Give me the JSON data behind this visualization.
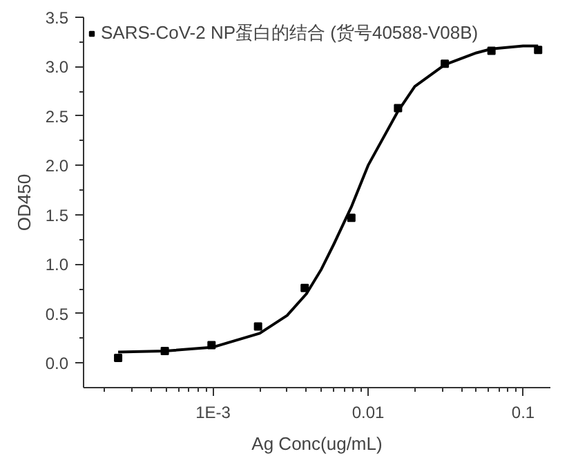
{
  "chart_data": {
    "type": "scatter",
    "xlabel": "Ag Conc(ug/mL)",
    "ylabel": "OD450",
    "log": "x",
    "grid": false,
    "legend": "top left",
    "marker": "square",
    "xlim": [
      0.000146,
      0.15
    ],
    "xticks": [
      {
        "value": 0.001,
        "label": "1E-3"
      },
      0.01,
      0.1
    ],
    "ylim": [
      -0.25,
      3.5
    ],
    "yticks": [
      {
        "value": 0.0,
        "label": "0.0"
      },
      0.5,
      {
        "value": 1.0,
        "label": "1.0"
      },
      1.5,
      {
        "value": 2.0,
        "label": "2.0"
      },
      2.5,
      {
        "value": 3.0,
        "label": "3.0"
      },
      3.5
    ],
    "series": [
      {
        "name": "SARS-CoV-2 NP蛋白的结合 (货号40588-V08B)",
        "color": "#000000",
        "x": [
          0.000244,
          0.000488,
          0.000977,
          0.00195,
          0.0039,
          0.0078,
          0.0156,
          0.03125,
          0.0625,
          0.125
        ],
        "values": [
          0.05,
          0.12,
          0.18,
          0.37,
          0.76,
          1.47,
          2.58,
          3.03,
          3.16,
          3.17
        ]
      },
      {
        "type": "line",
        "color": "#000000",
        "marker": "none",
        "x": [
          0.000244,
          0.000488,
          0.001,
          0.002,
          0.003,
          0.004,
          0.005,
          0.006,
          0.0078,
          0.01,
          0.0156,
          0.02,
          0.03125,
          0.05,
          0.0625,
          0.1,
          0.125
        ],
        "values": [
          0.11,
          0.12,
          0.16,
          0.3,
          0.48,
          0.7,
          0.95,
          1.2,
          1.58,
          2.0,
          2.55,
          2.8,
          3.02,
          3.14,
          3.18,
          3.21,
          3.21
        ]
      }
    ]
  }
}
